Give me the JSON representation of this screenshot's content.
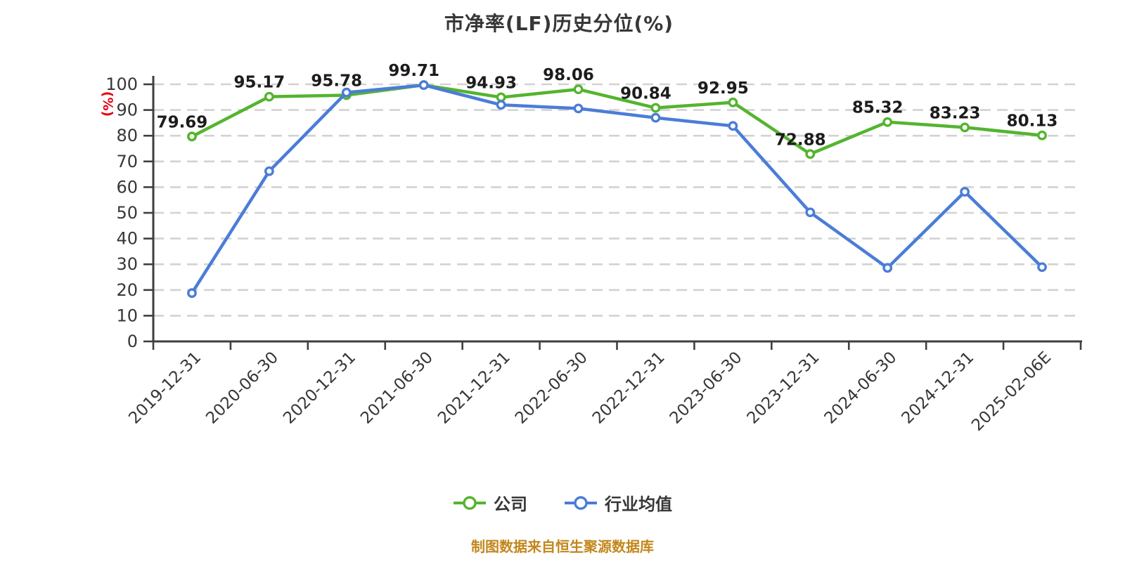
{
  "page": {
    "footer_note": "制图数据来自恒生聚源数据库"
  },
  "palette": {
    "company_green": "#54b42e",
    "industry_blue": "#4b7dd7",
    "title_text": "#373737",
    "axis_text": "#373737",
    "data_label_text": "#1c1c1c",
    "axis_line": "#3f3f3f",
    "gridline": "#d2d2d2",
    "y_unit_red": "#e60012",
    "footer_orange": "#c2871c",
    "marker_fill": "#ffffff",
    "background": "#ffffff"
  },
  "chart_data": {
    "type": "line",
    "title": "市净率(LF)历史分位(%)",
    "xlabel": "",
    "ylabel": "(%)",
    "ylim": [
      0,
      100
    ],
    "ytick_step": 10,
    "grid": "horizontal-dashed",
    "legend_position": "bottom",
    "x_label_rotation": 45,
    "categories": [
      "2019-12-31",
      "2020-06-30",
      "2020-12-31",
      "2021-06-30",
      "2021-12-31",
      "2022-06-30",
      "2022-12-31",
      "2023-06-30",
      "2023-12-31",
      "2024-06-30",
      "2024-12-31",
      "2025-02-06E"
    ],
    "series": [
      {
        "name": "公司",
        "color": "#54b42e",
        "marker": "empty-circle",
        "show_labels": true,
        "values": [
          79.69,
          95.17,
          95.78,
          99.71,
          94.93,
          98.06,
          90.84,
          92.95,
          72.88,
          85.32,
          83.23,
          80.13
        ]
      },
      {
        "name": "行业均值",
        "color": "#4b7dd7",
        "marker": "empty-circle",
        "show_labels": false,
        "values": [
          18.8,
          66.2,
          96.8,
          99.7,
          92.0,
          90.6,
          87.0,
          83.8,
          50.2,
          28.6,
          58.2,
          28.9
        ]
      }
    ]
  }
}
